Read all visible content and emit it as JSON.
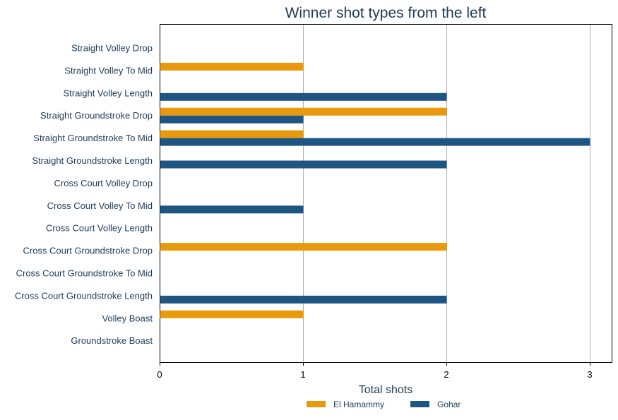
{
  "chart_data": {
    "type": "bar",
    "orientation": "horizontal",
    "title": "Winner shot types from the left",
    "xlabel": "Total shots",
    "ylabel": "",
    "xlim": [
      0,
      3.15
    ],
    "xticks": [
      "0",
      "1",
      "2",
      "3"
    ],
    "grid": "vertical",
    "legend": "bottom",
    "categories": [
      "Straight Volley Drop",
      "Straight Volley To Mid",
      "Straight Volley Length",
      "Straight Groundstroke Drop",
      "Straight Groundstroke To Mid",
      "Straight Groundstroke Length",
      "Cross Court Volley Drop",
      "Cross Court Volley To Mid",
      "Cross Court Volley Length",
      "Cross Court Groundstroke Drop",
      "Cross Court Groundstroke To Mid",
      "Cross Court Groundstroke Length",
      "Volley Boast",
      "Groundstroke Boast"
    ],
    "series": [
      {
        "name": "El Hamammy",
        "color": "#e89a0c",
        "values": [
          0,
          1,
          0,
          2,
          1,
          0,
          0,
          0,
          0,
          2,
          0,
          0,
          1,
          0
        ]
      },
      {
        "name": "Gohar",
        "color": "#1f5582",
        "values": [
          0,
          0,
          2,
          1,
          3,
          2,
          0,
          1,
          0,
          0,
          0,
          2,
          0,
          0
        ]
      }
    ]
  }
}
